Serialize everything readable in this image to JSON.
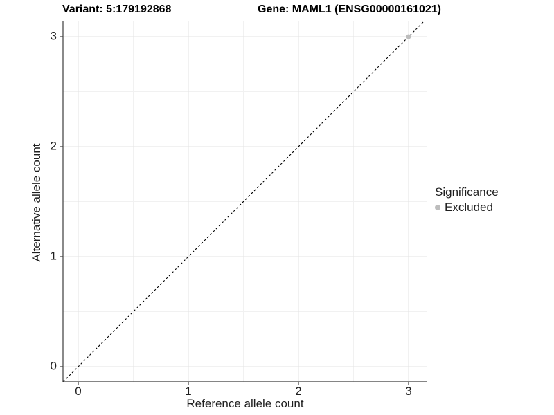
{
  "header": {
    "variant_title": "Variant: 5:179192868",
    "gene_title": "Gene: MAML1 (ENSG00000161021)"
  },
  "chart_data": {
    "type": "scatter",
    "title_left": "Variant: 5:179192868",
    "title_right": "Gene: MAML1 (ENSG00000161021)",
    "xlabel": "Reference allele count",
    "ylabel": "Alternative allele count",
    "x_ticks": [
      0,
      1,
      2,
      3
    ],
    "y_ticks": [
      0,
      1,
      2,
      3
    ],
    "x_minor_ticks": [
      0.5,
      1.5,
      2.5
    ],
    "y_minor_ticks": [
      0.5,
      1.5,
      2.5
    ],
    "xlim": [
      -0.14,
      3.17
    ],
    "ylim": [
      -0.14,
      3.14
    ],
    "grid": "major+minor",
    "identity_line": {
      "type": "abline",
      "slope": 1,
      "intercept": 0,
      "linetype": "dashed",
      "color": "#000000"
    },
    "points": [
      {
        "x": 3,
        "y": 3,
        "significance": "Excluded"
      }
    ],
    "legend": {
      "title": "Significance",
      "position": "right",
      "items": [
        {
          "label": "Excluded",
          "color": "#BDBDBD"
        }
      ]
    },
    "colors": {
      "background": "#FFFFFF",
      "grid_major": "#E3E3E3",
      "grid_minor": "#F1F1F1",
      "axis_line": "#3C3C3C",
      "text": "#1F1F1F",
      "point_excluded": "#BDBDBD",
      "identity_line": "#000000"
    }
  }
}
